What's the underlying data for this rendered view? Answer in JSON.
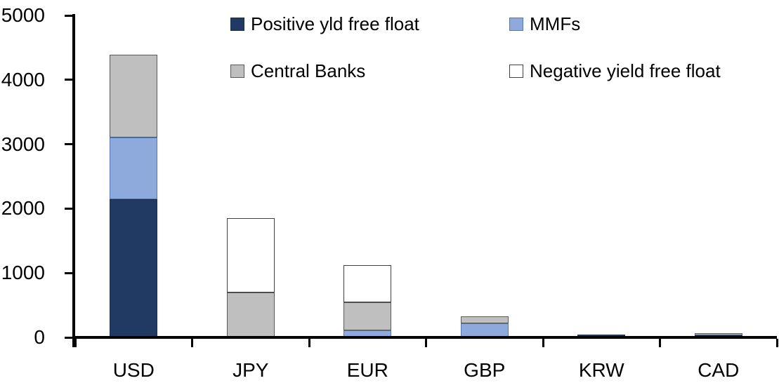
{
  "chart_data": {
    "type": "bar",
    "stacked": true,
    "title": "",
    "categories": [
      "USD",
      "JPY",
      "EUR",
      "GBP",
      "KRW",
      "CAD"
    ],
    "series": [
      {
        "name": "Positive yld free float",
        "color": "#203a64",
        "values": [
          2150,
          0,
          0,
          0,
          45,
          30
        ]
      },
      {
        "name": "MMFs",
        "color": "#8ea9db",
        "values": [
          950,
          0,
          110,
          220,
          0,
          0
        ]
      },
      {
        "name": "Central Banks",
        "color": "#bfbfbf",
        "values": [
          1290,
          700,
          430,
          110,
          0,
          30
        ]
      },
      {
        "name": "Negative yield free float",
        "color": "#ffffff",
        "values": [
          0,
          1150,
          580,
          0,
          0,
          0
        ]
      }
    ],
    "totals": [
      4390,
      1850,
      1120,
      330,
      45,
      60
    ],
    "xlabel": "",
    "ylabel": "",
    "ylim": [
      0,
      5000
    ],
    "yticks": [
      0,
      1000,
      2000,
      3000,
      4000,
      5000
    ],
    "grid": false,
    "legend_position": "top",
    "axis_color": "#000000"
  }
}
